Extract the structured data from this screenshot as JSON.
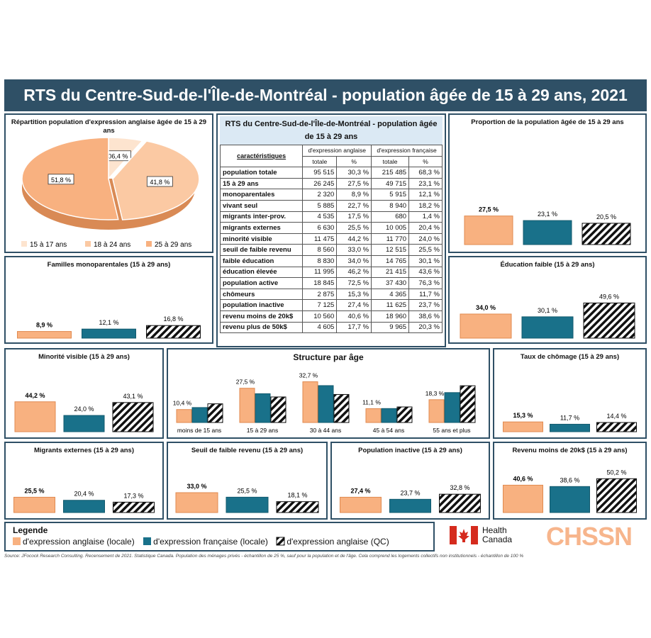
{
  "title": "RTS du Centre-Sud-de-l'Île-de-Montréal - population âgée de 15 à 29 ans, 2021",
  "colors": {
    "anglaise_locale": "#f8b180",
    "francaise_locale": "#19718a",
    "anglaise_qc": "hatch-black"
  },
  "table": {
    "title": "RTS du Centre-Sud-de-l'Île-de-Montréal - population âgée de 15 à 29 ans",
    "header_group": [
      "d'expression anglaise",
      "d'expression française"
    ],
    "header_first": "caractéristiques",
    "header_sub": [
      "totale",
      "%",
      "totale",
      "%"
    ],
    "rows": [
      [
        "population totale",
        "95 515",
        "30,3 %",
        "215 485",
        "68,3 %"
      ],
      [
        "15 à 29 ans",
        "26 245",
        "27,5 %",
        "49 715",
        "23,1 %"
      ],
      [
        "monoparentales",
        "2 320",
        "8,9 %",
        "5 915",
        "12,1 %"
      ],
      [
        "vivant seul",
        "5 885",
        "22,7 %",
        "8 940",
        "18,2 %"
      ],
      [
        "migrants inter-prov.",
        "4 535",
        "17,5 %",
        "680",
        "1,4 %"
      ],
      [
        "migrants externes",
        "6 630",
        "25,5 %",
        "10 005",
        "20,4 %"
      ],
      [
        "minorité visible",
        "11 475",
        "44,2 %",
        "11 770",
        "24,0 %"
      ],
      [
        "seuil de faible revenu",
        "8 560",
        "33,0 %",
        "12 515",
        "25,5 %"
      ],
      [
        "faible éducation",
        "8 830",
        "34,0 %",
        "14 765",
        "30,1 %"
      ],
      [
        "éducation élevée",
        "11 995",
        "46,2 %",
        "21 415",
        "43,6 %"
      ],
      [
        "population active",
        "18 845",
        "72,5 %",
        "37 430",
        "76,3 %"
      ],
      [
        "chômeurs",
        "2 875",
        "15,3 %",
        "4 365",
        "11,7 %"
      ],
      [
        "population inactive",
        "7 125",
        "27,4 %",
        "11 625",
        "23,7 %"
      ],
      [
        "revenu moins de 20k$",
        "10 560",
        "40,6 %",
        "18 960",
        "38,6 %"
      ],
      [
        "revenu plus de 50k$",
        "4 605",
        "17,7 %",
        "9 965",
        "20,3 %"
      ]
    ]
  },
  "legend": {
    "title": "Legende",
    "items": [
      "d'expression anglaise (locale)",
      "d'expression française (locale)",
      "d'expression anglaise (QC)"
    ]
  },
  "logos": {
    "hc_line1": "Health",
    "hc_line2": "Canada",
    "chssn": "CHSSN"
  },
  "source": "Source: JFocock Research Consulting. Recensement de 2021. Statistique Canada. Population des ménages privés - échantillon de 25 %, sauf pour la population et de l'âge. Cela comprend les logements collectifs non institutionnels - échantillon de 100 %",
  "chart_data": [
    {
      "id": "pie",
      "type": "pie",
      "title": "Répartition population d'expression anglaise âgée de 15 à 29 ans",
      "categories": [
        "15 à 17 ans",
        "18 à 24 ans",
        "25 à 29 ans"
      ],
      "values": [
        6.4,
        41.8,
        51.8
      ],
      "labels": [
        "06,4 %",
        "41,8 %",
        "51,8 %"
      ],
      "colors": [
        "#fde4cf",
        "#fbc9a3",
        "#f8b180"
      ]
    },
    {
      "id": "proportion",
      "type": "bar",
      "title": "Proportion de la population âgée de 15 à 29 ans",
      "values": [
        27.5,
        23.1,
        20.5
      ],
      "labels": [
        "27,5 %",
        "23,1 %",
        "20,5 %"
      ]
    },
    {
      "id": "monoparentales",
      "type": "bar",
      "title": "Familles monoparentales (15 à 29 ans)",
      "values": [
        8.9,
        12.1,
        16.8
      ],
      "labels": [
        "8,9 %",
        "12,1 %",
        "16,8 %"
      ]
    },
    {
      "id": "education",
      "type": "bar",
      "title": "Éducation faible (15 à 29 ans)",
      "values": [
        34.0,
        30.1,
        49.6
      ],
      "labels": [
        "34,0 %",
        "30,1 %",
        "49,6 %"
      ]
    },
    {
      "id": "minorite",
      "type": "bar",
      "title": "Minorité visible (15 à 29 ans)",
      "values": [
        44.2,
        24.0,
        43.1
      ],
      "labels": [
        "44,2 %",
        "24,0 %",
        "43,1 %"
      ]
    },
    {
      "id": "structure",
      "type": "bar",
      "title": "Structure par âge",
      "categories": [
        "moins de 15 ans",
        "15 à 29 ans",
        "30 à 44 ans",
        "45 à 54 ans",
        "55 ans et plus"
      ],
      "series": [
        {
          "name": "d'expression anglaise (locale)",
          "values": [
            10.4,
            27.5,
            32.7,
            11.1,
            18.3
          ],
          "labels": [
            "10,4 %",
            "27,5 %",
            "32,7 %",
            "11,1 %",
            "18,3 %"
          ]
        },
        {
          "name": "d'expression française (locale)",
          "values": [
            12.0,
            23.1,
            29.6,
            11.2,
            24.0
          ]
        },
        {
          "name": "d'expression anglaise (QC)",
          "values": [
            15.0,
            20.5,
            22.5,
            12.5,
            29.5
          ]
        }
      ]
    },
    {
      "id": "chomage",
      "type": "bar",
      "title": "Taux de chômage (15 à 29 ans)",
      "values": [
        15.3,
        11.7,
        14.4
      ],
      "labels": [
        "15,3 %",
        "11,7 %",
        "14,4 %"
      ]
    },
    {
      "id": "migrants",
      "type": "bar",
      "title": "Migrants externes (15 à 29 ans)",
      "values": [
        25.5,
        20.4,
        17.3
      ],
      "labels": [
        "25,5 %",
        "20,4 %",
        "17,3 %"
      ]
    },
    {
      "id": "seuil",
      "type": "bar",
      "title": "Seuil de faible revenu (15 à 29 ans)",
      "values": [
        33.0,
        25.5,
        18.1
      ],
      "labels": [
        "33,0 %",
        "25,5 %",
        "18,1 %"
      ]
    },
    {
      "id": "inactive",
      "type": "bar",
      "title": "Population inactive (15 à 29 ans)",
      "values": [
        27.4,
        23.7,
        32.8
      ],
      "labels": [
        "27,4 %",
        "23,7 %",
        "32,8 %"
      ]
    },
    {
      "id": "revenu",
      "type": "bar",
      "title": "Revenu moins de 20k$ (15 à 29 ans)",
      "values": [
        40.6,
        38.6,
        50.2
      ],
      "labels": [
        "40,6 %",
        "38,6 %",
        "50,2 %"
      ]
    }
  ]
}
